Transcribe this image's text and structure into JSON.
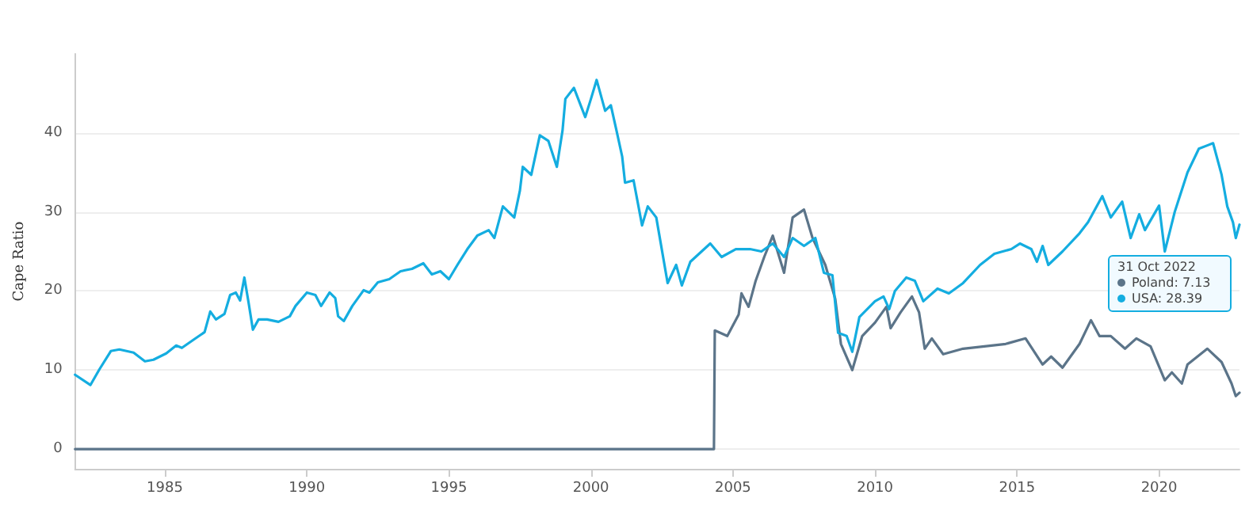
{
  "chart_data": {
    "type": "line",
    "ylabel": "Cape Ratio",
    "xlim": [
      1981.84,
      2022.83
    ],
    "xticks": [
      1985,
      1990,
      1995,
      2000,
      2005,
      2010,
      2015,
      2020
    ],
    "ylim": [
      -2.5,
      50
    ],
    "yticks": [
      0,
      10,
      20,
      30,
      40
    ],
    "grid": "y",
    "marker": "none",
    "line_style": "solid",
    "annotations": [
      "31 Oct 2022",
      "Poland: 7.13",
      "USA: 28.39"
    ],
    "series": [
      {
        "color": "#5b7489",
        "x": [
          1981.84,
          2004.33,
          2004.36,
          2004.8,
          2005.2,
          2005.3,
          2005.55,
          2005.8,
          2006.1,
          2006.4,
          2006.8,
          2007.1,
          2007.5,
          2007.8,
          2008.25,
          2008.6,
          2008.8,
          2009.2,
          2009.55,
          2010.0,
          2010.4,
          2010.55,
          2010.9,
          2011.3,
          2011.55,
          2011.75,
          2012.0,
          2012.4,
          2013.1,
          2013.85,
          2014.6,
          2015.3,
          2015.9,
          2016.2,
          2016.6,
          2017.2,
          2017.6,
          2017.9,
          2018.3,
          2018.8,
          2019.2,
          2019.7,
          2020.2,
          2020.45,
          2020.8,
          2021.0,
          2021.7,
          2022.2,
          2022.55,
          2022.7,
          2022.83
        ],
        "values": [
          0,
          0,
          15,
          14.3,
          17,
          19.7,
          18,
          21.3,
          24.3,
          27,
          22.3,
          29.3,
          30.3,
          26.7,
          23.3,
          19,
          13.3,
          10,
          14.3,
          16,
          18,
          15.3,
          17.3,
          19.3,
          17.3,
          12.7,
          14,
          12,
          12.7,
          13,
          13.3,
          14,
          10.7,
          11.7,
          10.3,
          13.3,
          16.3,
          14.3,
          14.3,
          12.7,
          14,
          13,
          8.7,
          9.7,
          8.3,
          10.7,
          12.7,
          11,
          8.3,
          6.7,
          7.13
        ]
      },
      {
        "color": "#14ade0",
        "x": [
          1981.84,
          1982.38,
          1982.7,
          1983.1,
          1983.4,
          1983.9,
          1984.3,
          1984.6,
          1985.05,
          1985.4,
          1985.6,
          1986.0,
          1986.4,
          1986.6,
          1986.8,
          1987.1,
          1987.3,
          1987.5,
          1987.65,
          1987.8,
          1987.95,
          1988.1,
          1988.3,
          1988.6,
          1989.0,
          1989.4,
          1989.6,
          1990.0,
          1990.3,
          1990.5,
          1990.8,
          1991.0,
          1991.1,
          1991.3,
          1991.6,
          1992.0,
          1992.2,
          1992.5,
          1992.9,
          1993.3,
          1993.7,
          1994.1,
          1994.4,
          1994.7,
          1995.0,
          1995.3,
          1995.65,
          1996.0,
          1996.4,
          1996.6,
          1996.9,
          1997.3,
          1997.5,
          1997.6,
          1997.9,
          1998.2,
          1998.5,
          1998.8,
          1999.0,
          1999.1,
          1999.4,
          1999.8,
          2000.0,
          2000.2,
          2000.5,
          2000.7,
          2000.9,
          2001.1,
          2001.2,
          2001.5,
          2001.8,
          2002.0,
          2002.3,
          2002.7,
          2003.0,
          2003.2,
          2003.5,
          2004.2,
          2004.6,
          2005.1,
          2005.6,
          2006.0,
          2006.4,
          2006.8,
          2007.1,
          2007.5,
          2007.9,
          2008.2,
          2008.5,
          2008.7,
          2009.0,
          2009.2,
          2009.45,
          2010.0,
          2010.3,
          2010.5,
          2010.7,
          2011.1,
          2011.4,
          2011.7,
          2012.2,
          2012.6,
          2013.1,
          2013.7,
          2014.2,
          2014.8,
          2015.1,
          2015.5,
          2015.7,
          2015.9,
          2016.1,
          2016.6,
          2017.2,
          2017.5,
          2018.0,
          2018.3,
          2018.7,
          2019.0,
          2019.3,
          2019.5,
          2020.0,
          2020.2,
          2020.55,
          2021.0,
          2021.4,
          2021.9,
          2022.2,
          2022.4,
          2022.6,
          2022.7,
          2022.83
        ],
        "values": [
          9.4,
          8.1,
          10.1,
          12.4,
          12.6,
          12.2,
          11.1,
          11.3,
          12.1,
          13.1,
          12.8,
          13.8,
          14.8,
          17.4,
          16.4,
          17.1,
          19.5,
          19.8,
          18.8,
          21.7,
          18.5,
          15.1,
          16.4,
          16.4,
          16.1,
          16.8,
          18.1,
          19.8,
          19.5,
          18.1,
          19.8,
          19.1,
          16.8,
          16.2,
          18.1,
          20.1,
          19.8,
          21.1,
          21.5,
          22.5,
          22.8,
          23.5,
          22.1,
          22.5,
          21.5,
          23.3,
          25.3,
          27,
          27.7,
          26.7,
          30.7,
          29.3,
          32.7,
          35.7,
          34.7,
          39.7,
          39,
          35.7,
          40.3,
          44.3,
          45.7,
          42,
          44.3,
          46.7,
          42.8,
          43.5,
          40.3,
          37,
          33.7,
          34,
          28.3,
          30.7,
          29.3,
          21,
          23.3,
          20.7,
          23.7,
          26,
          24.3,
          25.3,
          25.3,
          25,
          26,
          24.3,
          26.7,
          25.7,
          26.7,
          22.3,
          22,
          14.7,
          14.3,
          12.3,
          16.7,
          18.7,
          19.3,
          17.7,
          20,
          21.7,
          21.3,
          18.7,
          20.3,
          19.7,
          21,
          23.3,
          24.7,
          25.3,
          26,
          25.3,
          23.7,
          25.7,
          23.3,
          25,
          27.3,
          28.7,
          32,
          29.3,
          31.3,
          26.7,
          29.7,
          27.7,
          30.8,
          25,
          30,
          35,
          38,
          38.7,
          34.7,
          30.7,
          28.7,
          26.7,
          28.39
        ]
      }
    ]
  }
}
